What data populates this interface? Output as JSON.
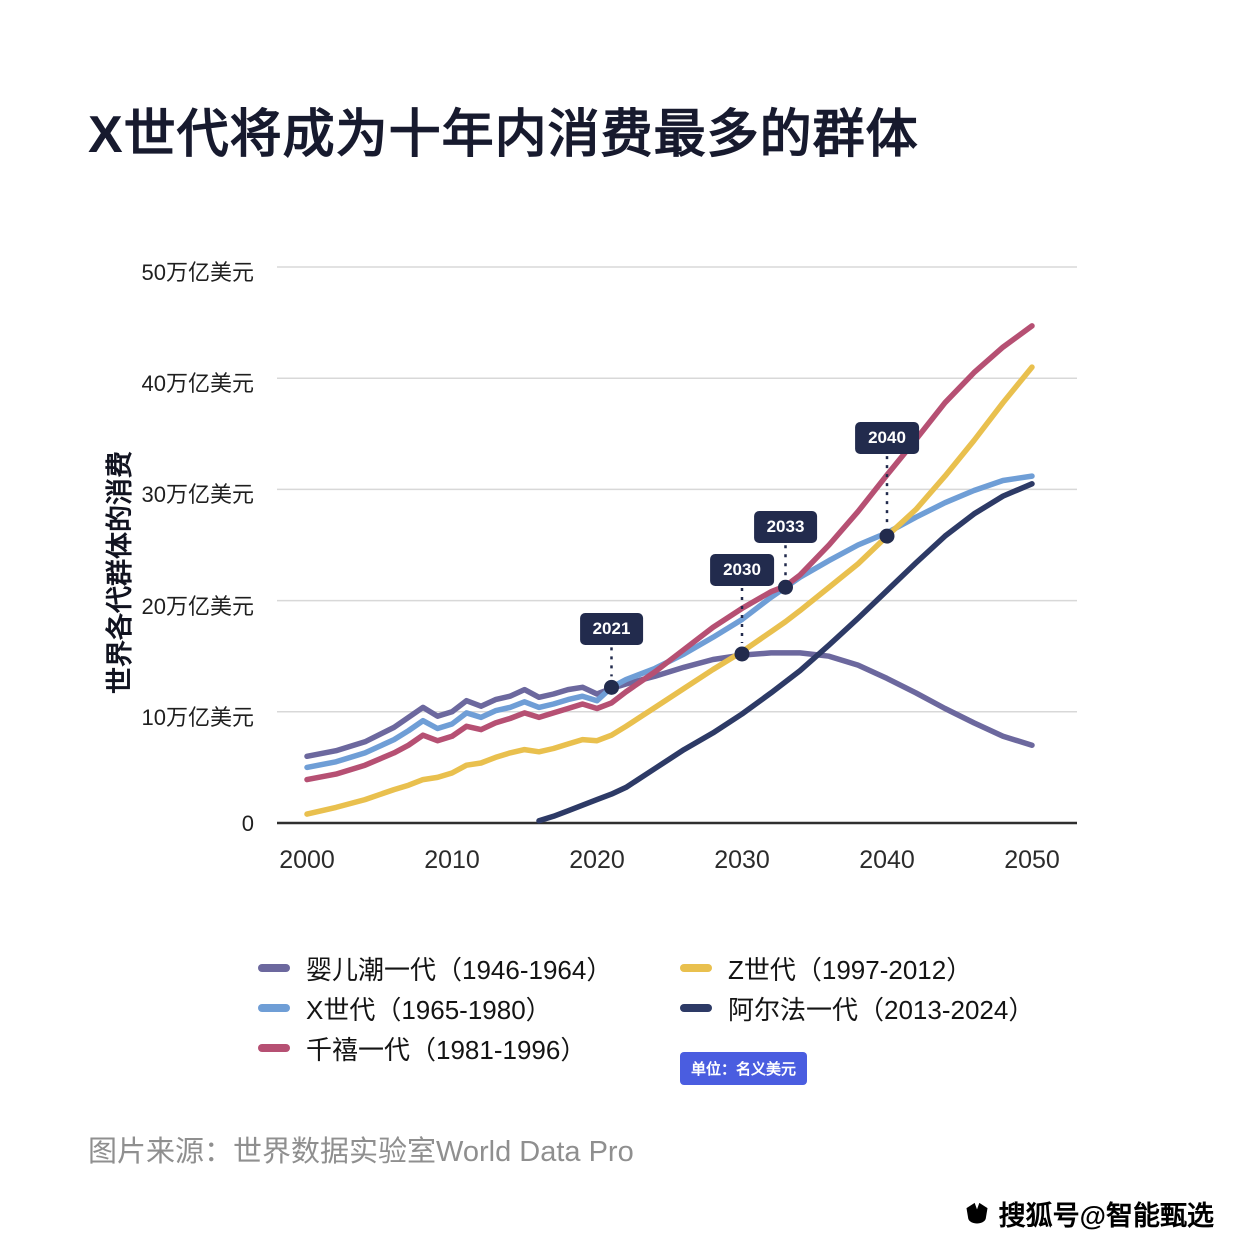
{
  "title": "X世代将成为十年内消费最多的群体",
  "source": "图片来源：世界数据实验室World Data Pro",
  "watermark": "搜狐号@智能甄选",
  "unit_badge": "单位：名义美元",
  "chart_data": {
    "type": "line",
    "title": "X世代将成为十年内消费最多的群体",
    "xlabel": "",
    "ylabel": "世界各代群体的消费",
    "unit": "万亿美元",
    "xlim": [
      2000,
      2050
    ],
    "ylim": [
      0,
      50
    ],
    "grid": true,
    "legend_position": "bottom",
    "x_ticks": [
      2000,
      2010,
      2020,
      2030,
      2040,
      2050
    ],
    "y_ticks": [
      {
        "value": 0,
        "label": "0"
      },
      {
        "value": 10,
        "label": "10万亿美元"
      },
      {
        "value": 20,
        "label": "20万亿美元"
      },
      {
        "value": 30,
        "label": "30万亿美元"
      },
      {
        "value": 40,
        "label": "40万亿美元"
      },
      {
        "value": 50,
        "label": "50万亿美元"
      }
    ],
    "x": [
      2000,
      2002,
      2004,
      2006,
      2007,
      2008,
      2009,
      2010,
      2011,
      2012,
      2013,
      2014,
      2015,
      2016,
      2017,
      2018,
      2019,
      2020,
      2021,
      2022,
      2024,
      2026,
      2028,
      2030,
      2032,
      2033,
      2034,
      2036,
      2038,
      2040,
      2042,
      2044,
      2046,
      2048,
      2050
    ],
    "series": [
      {
        "name": "婴儿潮一代（1946-1964）",
        "color": "#6c689e",
        "values": [
          6.0,
          6.5,
          7.3,
          8.6,
          9.5,
          10.4,
          9.6,
          10.0,
          11.0,
          10.5,
          11.1,
          11.4,
          12.0,
          11.3,
          11.6,
          12.0,
          12.2,
          11.6,
          12.1,
          12.5,
          13.2,
          14.0,
          14.7,
          15.1,
          15.3,
          15.3,
          15.3,
          15.0,
          14.2,
          13.0,
          11.7,
          10.3,
          9.0,
          7.8,
          7.0
        ]
      },
      {
        "name": "X世代（1965-1980）",
        "color": "#6f9ed6",
        "values": [
          5.0,
          5.5,
          6.3,
          7.5,
          8.3,
          9.2,
          8.5,
          8.9,
          9.9,
          9.5,
          10.1,
          10.4,
          10.9,
          10.4,
          10.7,
          11.1,
          11.4,
          11.0,
          12.2,
          12.9,
          13.9,
          15.2,
          16.7,
          18.3,
          20.3,
          21.2,
          22.1,
          23.6,
          25.0,
          26.1,
          27.5,
          28.8,
          29.9,
          30.8,
          31.2
        ]
      },
      {
        "name": "千禧一代（1981-1996）",
        "color": "#b65073",
        "values": [
          3.9,
          4.4,
          5.2,
          6.3,
          7.0,
          7.9,
          7.4,
          7.8,
          8.7,
          8.4,
          9.0,
          9.4,
          9.9,
          9.5,
          9.9,
          10.3,
          10.7,
          10.3,
          10.8,
          11.8,
          13.6,
          15.6,
          17.6,
          19.3,
          20.8,
          21.3,
          22.3,
          25.0,
          28.0,
          31.3,
          34.5,
          37.8,
          40.5,
          42.8,
          44.7
        ]
      },
      {
        "name": "Z世代（1997-2012）",
        "color": "#e9c04e",
        "values": [
          0.8,
          1.4,
          2.1,
          3.0,
          3.4,
          3.9,
          4.1,
          4.5,
          5.2,
          5.4,
          5.9,
          6.3,
          6.6,
          6.4,
          6.7,
          7.1,
          7.5,
          7.4,
          7.9,
          8.7,
          10.4,
          12.1,
          13.8,
          15.4,
          17.2,
          18.1,
          19.1,
          21.2,
          23.3,
          25.8,
          28.2,
          31.2,
          34.4,
          37.8,
          41.0
        ]
      },
      {
        "name": "阿尔法一代（2013-2024）",
        "color": "#2d3a66",
        "values": [
          null,
          null,
          null,
          null,
          null,
          null,
          null,
          null,
          null,
          null,
          null,
          null,
          null,
          0.2,
          0.6,
          1.1,
          1.6,
          2.1,
          2.6,
          3.2,
          4.9,
          6.6,
          8.1,
          9.8,
          11.7,
          12.7,
          13.7,
          16.0,
          18.4,
          20.9,
          23.4,
          25.8,
          27.8,
          29.4,
          30.5
        ]
      }
    ],
    "annotations": [
      {
        "label": "2021",
        "year": 2021,
        "value": 12.2
      },
      {
        "label": "2030",
        "year": 2030,
        "value": 15.2
      },
      {
        "label": "2033",
        "year": 2033,
        "value": 21.2
      },
      {
        "label": "2040",
        "year": 2040,
        "value": 25.8
      }
    ],
    "annotation_color": "#222b4d"
  },
  "legend": {
    "columns": [
      [
        "婴儿潮一代（1946-1964）",
        "X世代（1965-1980）",
        "千禧一代（1981-1996）"
      ],
      [
        "Z世代（1997-2012）",
        "阿尔法一代（2013-2024）"
      ]
    ]
  }
}
